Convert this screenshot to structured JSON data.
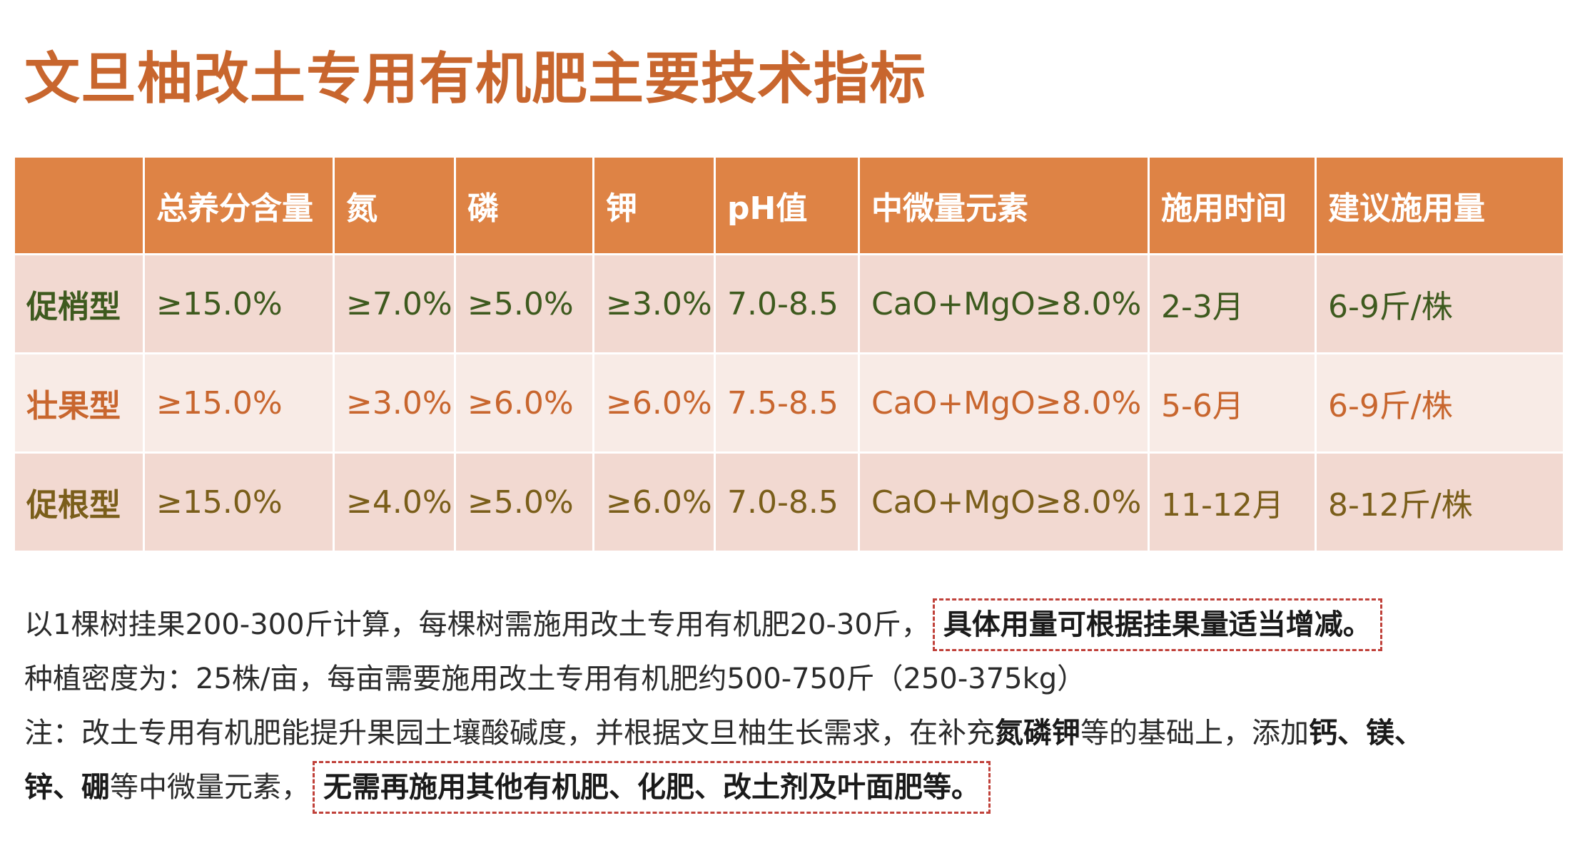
{
  "title": "文旦柚改土专用有机肥主要技术指标",
  "table": {
    "headers": [
      "",
      "总养分含量",
      "氮",
      "磷",
      "钾",
      "pH值",
      "中微量元素",
      "施用时间",
      "建议施用量"
    ],
    "rows": [
      {
        "name": "促梢型",
        "color": "#3e5a1e",
        "cells": [
          "≥15.0%",
          "≥7.0%",
          "≥5.0%",
          "≥3.0%",
          "7.0-8.5",
          "CaO+MgO≥8.0%",
          "2-3月",
          "6-9斤/株"
        ]
      },
      {
        "name": "壮果型",
        "color": "#c8662e",
        "cells": [
          "≥15.0%",
          "≥3.0%",
          "≥6.0%",
          "≥6.0%",
          "7.5-8.5",
          "CaO+MgO≥8.0%",
          "5-6月",
          "6-9斤/株"
        ]
      },
      {
        "name": "促根型",
        "color": "#7a5e1a",
        "cells": [
          "≥15.0%",
          "≥4.0%",
          "≥5.0%",
          "≥6.0%",
          "7.0-8.5",
          "CaO+MgO≥8.0%",
          "11-12月",
          "8-12斤/株"
        ]
      }
    ]
  },
  "notes": {
    "line1_text": "以1棵树挂果200-300斤计算，每棵树需施用改土专用有机肥20-30斤，",
    "line1_boxed": "具体用量可根据挂果量适当增减。",
    "line2_text": "种植密度为：25株/亩，每亩需要施用改土专用有机肥约500-750斤（250-375kg）",
    "line3_a": "注：改土专用有机肥能提升果园土壤酸碱度，并根据文旦柚生长需求，在补充",
    "line3_b": "氮磷钾",
    "line3_c": "等的基础上，添加",
    "line3_d": "钙、镁、",
    "line4_a": "锌、硼",
    "line4_b": "等中微量元素，",
    "line4_boxed": "无需再施用其他有机肥、化肥、改土剂及叶面肥等。"
  }
}
